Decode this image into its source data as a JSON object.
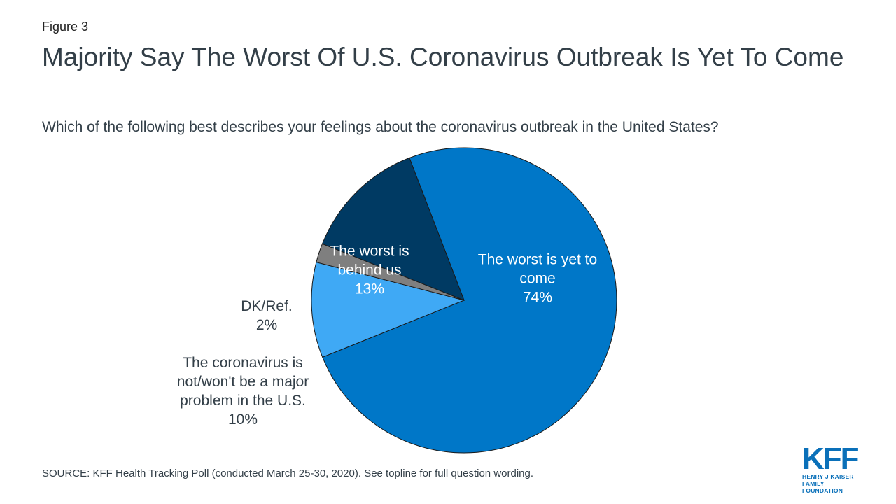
{
  "figure_label": "Figure 3",
  "title": "Majority Say The Worst Of U.S. Coronavirus Outbreak Is Yet To Come",
  "subtitle": "Which of the following best describes your feelings about the coronavirus outbreak in the United States?",
  "source": "SOURCE: KFF Health Tracking Poll (conducted March 25-30, 2020). See topline for full question wording.",
  "logo": {
    "main": "KFF",
    "line1": "HENRY J KAISER",
    "line2": "FAMILY FOUNDATION",
    "color": "#0a70b9"
  },
  "chart_data": {
    "type": "pie",
    "slices": [
      {
        "label_lines": [
          "The worst is yet to",
          "come"
        ],
        "value": 74,
        "value_label": "74%",
        "color": "#0077c8"
      },
      {
        "label_lines": [
          "The coronavirus is",
          "not/won't be a major",
          "problem in the U.S."
        ],
        "value": 10,
        "value_label": "10%",
        "color": "#3fa9f5"
      },
      {
        "label_lines": [
          "DK/Ref."
        ],
        "value": 2,
        "value_label": "2%",
        "color": "#7f7f7f"
      },
      {
        "label_lines": [
          "The worst is",
          "behind us"
        ],
        "value": 13,
        "value_label": "13%",
        "color": "#003a63"
      }
    ],
    "start_slice_boundary_angle_deg": -111,
    "direction": "clockwise"
  }
}
